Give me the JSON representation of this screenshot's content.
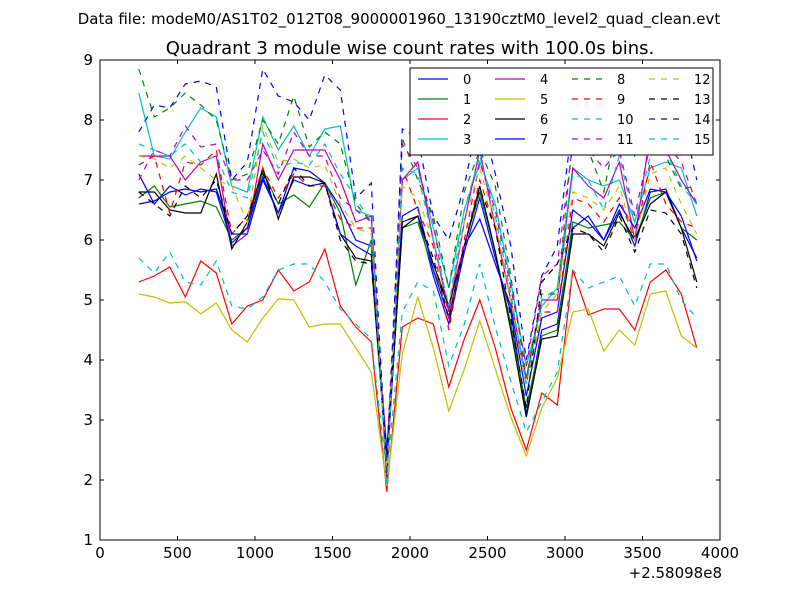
{
  "figure": {
    "suptitle": "Data file: modeM0/AS1T02_012T08_9000001960_13190cztM0_level2_quad_clean.evt"
  },
  "chart_data": {
    "type": "line",
    "title": "Quadrant 3 module wise count rates with 100.0s bins.",
    "xlabel": "",
    "ylabel": "",
    "xlim": [
      0,
      4000
    ],
    "ylim": [
      1,
      9
    ],
    "x_ticks": [
      0,
      500,
      1000,
      1500,
      2000,
      2500,
      3000,
      3500,
      4000
    ],
    "y_ticks": [
      1,
      2,
      3,
      4,
      5,
      6,
      7,
      8,
      9
    ],
    "x_tick_labels": [
      "0",
      "500",
      "1000",
      "1500",
      "2000",
      "2500",
      "3000",
      "3500",
      "4000"
    ],
    "y_tick_labels": [
      "1",
      "2",
      "3",
      "4",
      "5",
      "6",
      "7",
      "8",
      "9"
    ],
    "x_offset_label": "+2.58098e8",
    "grid": false,
    "legend_placement": "top-right",
    "legend_columns": 4,
    "x": [
      250,
      350,
      450,
      550,
      650,
      750,
      850,
      950,
      1050,
      1150,
      1250,
      1350,
      1450,
      1550,
      1650,
      1750,
      1850,
      1950,
      2050,
      2150,
      2250,
      2350,
      2450,
      2550,
      2650,
      2750,
      2850,
      2950,
      3050,
      3150,
      3250,
      3350,
      3450,
      3550,
      3650,
      3750,
      3850
    ],
    "series": [
      {
        "name": "0",
        "color": "#0000ff",
        "dash": "solid",
        "values": [
          6.6,
          6.65,
          6.8,
          6.85,
          6.8,
          6.85,
          6.1,
          6.1,
          7.0,
          6.45,
          7.0,
          6.9,
          6.95,
          6.55,
          6.0,
          5.9,
          2.2,
          6.3,
          6.4,
          5.4,
          4.6,
          5.8,
          6.7,
          5.7,
          4.8,
          3.1,
          4.5,
          4.6,
          6.2,
          6.4,
          6.0,
          6.5,
          5.9,
          6.8,
          6.85,
          6.2,
          5.7
        ]
      },
      {
        "name": "1",
        "color": "#008000",
        "dash": "solid",
        "values": [
          6.7,
          6.9,
          6.55,
          6.6,
          6.65,
          6.55,
          6.0,
          6.2,
          7.15,
          6.6,
          6.75,
          6.55,
          6.95,
          6.45,
          5.25,
          6.0,
          2.3,
          6.2,
          6.3,
          5.5,
          4.9,
          5.9,
          6.8,
          5.8,
          4.6,
          3.2,
          4.4,
          4.5,
          6.3,
          6.2,
          6.25,
          6.3,
          6.0,
          6.7,
          6.8,
          6.2,
          6.0
        ]
      },
      {
        "name": "2",
        "color": "#ff0000",
        "dash": "solid",
        "values": [
          5.3,
          5.4,
          5.55,
          5.05,
          5.65,
          5.45,
          4.6,
          4.9,
          5.0,
          5.5,
          5.15,
          5.3,
          5.85,
          4.9,
          4.55,
          4.3,
          1.8,
          4.55,
          4.7,
          4.6,
          3.55,
          4.35,
          5.0,
          4.2,
          3.2,
          2.5,
          3.45,
          3.25,
          5.5,
          4.75,
          4.85,
          4.85,
          4.5,
          5.3,
          5.5,
          5.1,
          4.2
        ]
      },
      {
        "name": "3",
        "color": "#00bfbf",
        "dash": "solid",
        "values": [
          8.45,
          7.4,
          7.35,
          7.8,
          8.2,
          8.05,
          6.9,
          6.8,
          8.05,
          7.5,
          7.9,
          7.4,
          7.85,
          7.9,
          6.5,
          6.4,
          2.0,
          7.0,
          7.2,
          6.2,
          5.2,
          6.5,
          7.3,
          6.6,
          5.3,
          3.9,
          4.9,
          5.2,
          7.2,
          7.0,
          6.9,
          7.0,
          6.3,
          7.2,
          7.3,
          7.2,
          6.4
        ]
      },
      {
        "name": "4",
        "color": "#bf00bf",
        "dash": "solid",
        "values": [
          7.4,
          7.4,
          7.4,
          7.0,
          7.3,
          7.4,
          5.9,
          6.1,
          7.6,
          7.0,
          7.5,
          7.5,
          7.5,
          7.0,
          6.3,
          6.4,
          2.0,
          7.0,
          7.3,
          6.0,
          4.8,
          6.3,
          7.5,
          6.2,
          5.0,
          3.7,
          5.0,
          5.0,
          7.2,
          6.9,
          6.7,
          7.3,
          6.0,
          7.8,
          7.5,
          7.0,
          6.6
        ]
      },
      {
        "name": "5",
        "color": "#bfbf00",
        "dash": "solid",
        "values": [
          5.1,
          5.05,
          4.95,
          4.97,
          4.77,
          4.95,
          4.5,
          4.3,
          4.7,
          5.02,
          5.0,
          4.55,
          4.6,
          4.6,
          4.2,
          3.8,
          1.9,
          4.1,
          5.05,
          4.2,
          3.15,
          3.85,
          4.65,
          3.85,
          3.05,
          2.4,
          3.2,
          3.7,
          4.8,
          4.85,
          4.15,
          4.5,
          4.25,
          5.1,
          5.15,
          4.4,
          4.2
        ]
      },
      {
        "name": "6",
        "color": "#000000",
        "dash": "solid",
        "values": [
          6.8,
          6.8,
          6.5,
          6.45,
          6.45,
          7.1,
          5.85,
          6.3,
          7.2,
          6.35,
          7.05,
          7.05,
          6.95,
          6.1,
          5.7,
          5.65,
          2.3,
          6.2,
          6.4,
          5.6,
          4.9,
          5.9,
          6.9,
          5.8,
          4.5,
          3.05,
          4.35,
          4.4,
          6.1,
          6.1,
          5.9,
          6.45,
          6.0,
          6.6,
          6.8,
          6.2,
          5.3
        ]
      },
      {
        "name": "7",
        "color": "#0000ff",
        "dash": "solid",
        "values": [
          7.1,
          6.6,
          6.9,
          6.75,
          6.85,
          6.8,
          5.95,
          6.2,
          7.05,
          6.45,
          7.2,
          7.15,
          6.95,
          6.1,
          5.9,
          5.75,
          2.5,
          6.4,
          6.55,
          5.5,
          4.7,
          5.9,
          6.35,
          5.6,
          4.9,
          3.4,
          4.7,
          4.8,
          6.5,
          6.3,
          6.0,
          6.6,
          6.2,
          6.85,
          6.8,
          6.4,
          5.65
        ]
      },
      {
        "name": "8",
        "color": "#008000",
        "dash": "dashed",
        "values": [
          8.85,
          8.05,
          8.2,
          8.45,
          8.25,
          8.0,
          7.0,
          7.1,
          8.0,
          7.6,
          8.4,
          7.55,
          7.8,
          7.6,
          6.6,
          6.3,
          2.1,
          7.7,
          7.0,
          6.4,
          5.2,
          6.8,
          7.5,
          6.9,
          5.4,
          3.7,
          5.1,
          5.1,
          7.7,
          7.5,
          6.8,
          8.1,
          7.4,
          7.85,
          7.4,
          6.85,
          6.9
        ]
      },
      {
        "name": "9",
        "color": "#ff0000",
        "dash": "dashed",
        "values": [
          7.25,
          7.4,
          6.45,
          7.3,
          7.25,
          7.5,
          6.1,
          6.4,
          7.2,
          6.7,
          7.1,
          6.9,
          6.9,
          6.35,
          6.2,
          6.2,
          2.2,
          7.2,
          6.5,
          5.9,
          4.5,
          5.9,
          7.0,
          6.2,
          5.0,
          3.6,
          4.8,
          4.8,
          6.7,
          6.6,
          6.3,
          6.7,
          6.0,
          7.3,
          6.6,
          6.3,
          6.2
        ]
      },
      {
        "name": "10",
        "color": "#00bfbf",
        "dash": "dashed",
        "values": [
          5.7,
          5.45,
          5.8,
          5.3,
          5.25,
          5.65,
          4.9,
          4.85,
          5.05,
          5.5,
          5.6,
          5.6,
          5.3,
          4.85,
          4.6,
          4.35,
          2.1,
          4.8,
          5.3,
          5.15,
          3.9,
          4.6,
          5.6,
          4.55,
          3.65,
          2.8,
          3.3,
          3.8,
          5.5,
          5.2,
          5.3,
          5.4,
          4.9,
          5.6,
          5.6,
          5.0,
          4.7
        ]
      },
      {
        "name": "11",
        "color": "#bf00bf",
        "dash": "dashed",
        "values": [
          7.0,
          7.5,
          7.4,
          7.9,
          7.55,
          7.6,
          7.0,
          7.0,
          7.5,
          7.1,
          7.8,
          7.4,
          7.4,
          6.7,
          6.5,
          6.3,
          2.4,
          7.6,
          7.2,
          6.3,
          4.7,
          6.0,
          7.3,
          6.5,
          5.2,
          3.9,
          5.4,
          5.6,
          7.6,
          7.5,
          7.2,
          7.5,
          6.4,
          7.6,
          7.6,
          7.3,
          6.6
        ]
      },
      {
        "name": "12",
        "color": "#bfbf00",
        "dash": "dashed",
        "values": [
          7.4,
          7.35,
          7.2,
          7.4,
          7.2,
          7.0,
          6.9,
          6.3,
          7.9,
          7.3,
          7.35,
          7.2,
          7.25,
          6.6,
          6.2,
          6.1,
          2.2,
          6.9,
          6.7,
          6.0,
          4.9,
          6.3,
          7.2,
          6.3,
          5.0,
          3.6,
          4.8,
          5.1,
          6.8,
          6.7,
          6.5,
          6.9,
          6.0,
          7.1,
          7.2,
          6.6,
          6.1
        ]
      },
      {
        "name": "13",
        "color": "#000000",
        "dash": "dashed",
        "values": [
          6.8,
          6.6,
          6.4,
          6.9,
          6.7,
          7.0,
          6.1,
          6.4,
          7.1,
          6.6,
          7.2,
          6.9,
          6.95,
          6.0,
          5.65,
          5.6,
          2.4,
          6.3,
          6.4,
          5.7,
          4.7,
          5.9,
          6.85,
          6.2,
          4.7,
          3.2,
          5.3,
          5.6,
          6.2,
          6.1,
          5.8,
          6.4,
          5.8,
          6.5,
          6.45,
          6.1,
          5.2
        ]
      },
      {
        "name": "14",
        "color": "#0000ff",
        "dash": "dashed",
        "values": [
          7.8,
          8.25,
          8.2,
          8.6,
          8.65,
          8.55,
          7.0,
          7.3,
          8.85,
          8.4,
          8.3,
          8.0,
          8.75,
          8.5,
          6.7,
          6.95,
          2.0,
          7.85,
          7.7,
          6.4,
          6.0,
          6.9,
          8.15,
          7.1,
          5.9,
          4.0,
          5.4,
          5.9,
          8.0,
          7.9,
          7.6,
          8.25,
          7.7,
          8.45,
          8.3,
          8.15,
          7.0
        ]
      },
      {
        "name": "15",
        "color": "#00bfbf",
        "dash": "dashed",
        "values": [
          7.6,
          7.5,
          7.4,
          7.6,
          7.3,
          7.4,
          6.8,
          6.7,
          7.8,
          7.2,
          7.3,
          7.25,
          7.6,
          7.1,
          6.7,
          6.3,
          1.9,
          7.2,
          7.1,
          6.0,
          4.9,
          6.5,
          7.4,
          6.4,
          5.1,
          3.6,
          5.0,
          5.2,
          7.1,
          7.0,
          6.5,
          7.4,
          6.3,
          7.4,
          7.5,
          6.9,
          6.6
        ]
      }
    ]
  }
}
